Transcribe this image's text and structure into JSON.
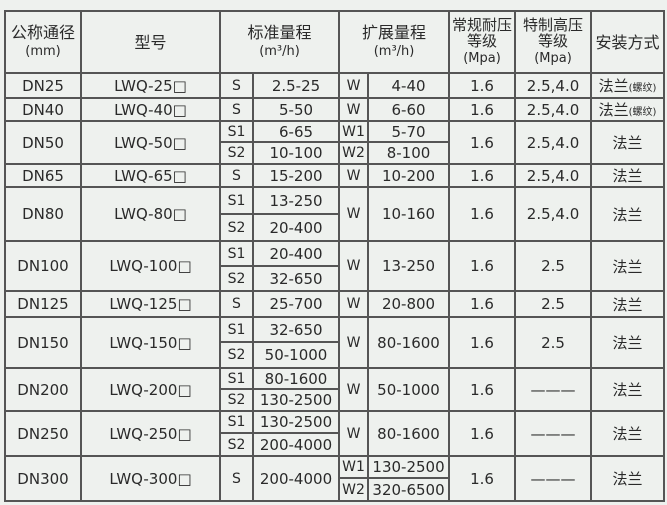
{
  "headers": {
    "dn": "公称通径",
    "dn_unit": "(mm)",
    "model": "型号",
    "std_range": "标准量程",
    "std_unit": "(m³/h)",
    "ext_range": "扩展量程",
    "ext_unit": "(m³/h)",
    "normal_pressure": "常规耐压等级",
    "normal_pressure_unit": "(Mpa)",
    "special_pressure": "特制高压等级",
    "special_pressure_unit": "(Mpa)",
    "install": "安装方式"
  },
  "rows": [
    {
      "dn": "DN25",
      "model": "LWQ-25□",
      "std": [
        [
          "S",
          "2.5-25"
        ]
      ],
      "ext": [
        [
          "W",
          "4-40"
        ]
      ],
      "np": "1.6",
      "sp": "2.5,4.0",
      "inst": "法兰",
      "inst_note": "(螺纹)"
    },
    {
      "dn": "DN40",
      "model": "LWQ-40□",
      "std": [
        [
          "S",
          "5-50"
        ]
      ],
      "ext": [
        [
          "W",
          "6-60"
        ]
      ],
      "np": "1.6",
      "sp": "2.5,4.0",
      "inst": "法兰",
      "inst_note": "(螺纹)"
    },
    {
      "dn": "DN50",
      "model": "LWQ-50□",
      "std": [
        [
          "S1",
          "6-65"
        ],
        [
          "S2",
          "10-100"
        ]
      ],
      "ext": [
        [
          "W1",
          "5-70"
        ],
        [
          "W2",
          "8-100"
        ]
      ],
      "np": "1.6",
      "sp": "2.5,4.0",
      "inst": "法兰"
    },
    {
      "dn": "DN65",
      "model": "LWQ-65□",
      "std": [
        [
          "S",
          "15-200"
        ]
      ],
      "ext": [
        [
          "W",
          "10-200"
        ]
      ],
      "np": "1.6",
      "sp": "2.5,4.0",
      "inst": "法兰"
    },
    {
      "dn": "DN80",
      "model": "LWQ-80□",
      "std": [
        [
          "S1",
          "13-250"
        ],
        [
          "S2",
          "20-400"
        ]
      ],
      "ext": [
        [
          "W",
          "10-160"
        ]
      ],
      "np": "1.6",
      "sp": "2.5,4.0",
      "inst": "法兰"
    },
    {
      "dn": "DN100",
      "model": "LWQ-100□",
      "std": [
        [
          "S1",
          "20-400"
        ],
        [
          "S2",
          "32-650"
        ]
      ],
      "ext": [
        [
          "W",
          "13-250"
        ]
      ],
      "np": "1.6",
      "sp": "2.5",
      "inst": "法兰"
    },
    {
      "dn": "DN125",
      "model": "LWQ-125□",
      "std": [
        [
          "S",
          "25-700"
        ]
      ],
      "ext": [
        [
          "W",
          "20-800"
        ]
      ],
      "np": "1.6",
      "sp": "2.5",
      "inst": "法兰"
    },
    {
      "dn": "DN150",
      "model": "LWQ-150□",
      "std": [
        [
          "S1",
          "32-650"
        ],
        [
          "S2",
          "50-1000"
        ]
      ],
      "ext": [
        [
          "W",
          "80-1600"
        ]
      ],
      "np": "1.6",
      "sp": "2.5",
      "inst": "法兰"
    },
    {
      "dn": "DN200",
      "model": "LWQ-200□",
      "std": [
        [
          "S1",
          "80-1600"
        ],
        [
          "S2",
          "130-2500"
        ]
      ],
      "ext": [
        [
          "W",
          "50-1000"
        ]
      ],
      "np": "1.6",
      "sp": "———",
      "inst": "法兰"
    },
    {
      "dn": "DN250",
      "model": "LWQ-250□",
      "std": [
        [
          "S1",
          "130-2500"
        ],
        [
          "S2",
          "200-4000"
        ]
      ],
      "ext": [
        [
          "W",
          "80-1600"
        ]
      ],
      "np": "1.6",
      "sp": "———",
      "inst": "法兰"
    },
    {
      "dn": "DN300",
      "model": "LWQ-300□",
      "std": [
        [
          "S",
          "200-4000"
        ]
      ],
      "ext": [
        [
          "W1",
          "130-2500"
        ],
        [
          "W2",
          "320-6500"
        ]
      ],
      "np": "1.6",
      "sp": "———",
      "inst": "法兰"
    }
  ]
}
